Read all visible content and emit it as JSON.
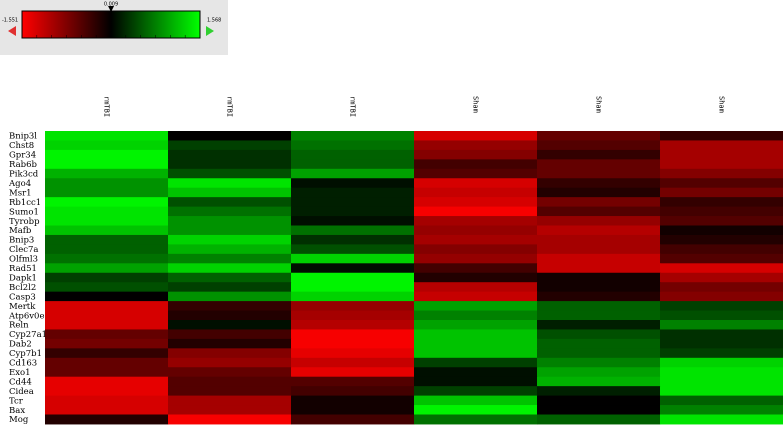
{
  "chart_data": {
    "type": "heatmap",
    "clim": [
      -1.551,
      1.568
    ],
    "center": 0.009,
    "low_color": "#ff0000",
    "mid_color": "#000000",
    "high_color": "#00ff00",
    "columns": [
      "rmTBI",
      "rmTBI",
      "rmTBI",
      "Sham",
      "Sham",
      "Sham"
    ],
    "rows": [
      "Bnip3l",
      "Chst8",
      "Gpr34",
      "Rab6b",
      "Pik3cd",
      "Ago4",
      "Msr1",
      "Rb1cc1",
      "Sumo1",
      "Tyrobp",
      "Mafb",
      "Bnip3",
      "Clec7a",
      "Olfml3",
      "Rad51",
      "Dapk1",
      "Bcl2l2",
      "Casp3",
      "Mertk",
      "Atp6v0e",
      "Reln",
      "Cyp27a1",
      "Dab2",
      "Cyp7b1",
      "Cd163",
      "Exo1",
      "Cd44",
      "Cidea",
      "Tcr",
      "Bax",
      "Mog"
    ],
    "values": [
      [
        1.4,
        0.0,
        0.8,
        -1.3,
        -0.6,
        -0.3
      ],
      [
        1.3,
        0.4,
        0.7,
        -0.9,
        -0.5,
        -1.0
      ],
      [
        1.5,
        0.3,
        0.6,
        -0.8,
        -0.3,
        -1.0
      ],
      [
        1.5,
        0.3,
        0.6,
        -0.4,
        -0.6,
        -1.0
      ],
      [
        1.1,
        0.5,
        1.0,
        -0.5,
        -0.6,
        -0.8
      ],
      [
        0.9,
        1.4,
        0.1,
        -1.3,
        -0.3,
        -0.5
      ],
      [
        0.9,
        1.2,
        0.2,
        -1.2,
        -0.2,
        -0.7
      ],
      [
        1.5,
        0.5,
        0.2,
        -1.3,
        -0.7,
        -0.3
      ],
      [
        1.4,
        0.7,
        0.2,
        -1.5,
        -0.5,
        -0.4
      ],
      [
        1.4,
        0.9,
        0.1,
        -1.0,
        -0.9,
        -0.5
      ],
      [
        1.2,
        0.9,
        0.7,
        -0.9,
        -1.1,
        -0.1
      ],
      [
        0.6,
        1.3,
        0.3,
        -1.0,
        -1.0,
        -0.2
      ],
      [
        0.6,
        1.1,
        0.5,
        -0.8,
        -1.0,
        -0.4
      ],
      [
        0.7,
        0.8,
        1.3,
        -0.9,
        -1.2,
        -0.5
      ],
      [
        1.0,
        1.3,
        0.1,
        -0.4,
        -1.2,
        -1.3
      ],
      [
        0.4,
        0.6,
        1.5,
        -0.2,
        -0.1,
        -1.0
      ],
      [
        0.5,
        0.4,
        1.5,
        -1.1,
        -0.1,
        -0.7
      ],
      [
        0.0,
        0.9,
        1.3,
        -1.2,
        -0.2,
        -0.8
      ],
      [
        -1.3,
        -0.3,
        -0.9,
        1.0,
        0.6,
        0.4
      ],
      [
        -1.3,
        -0.2,
        -1.0,
        0.8,
        0.6,
        0.5
      ],
      [
        -1.3,
        0.1,
        -1.1,
        1.0,
        0.2,
        0.8
      ],
      [
        -0.6,
        -0.4,
        -1.5,
        1.2,
        0.5,
        0.3
      ],
      [
        -0.7,
        -0.2,
        -1.5,
        1.2,
        0.6,
        0.3
      ],
      [
        -0.3,
        -0.8,
        -1.4,
        1.2,
        0.6,
        0.4
      ],
      [
        -0.6,
        -0.9,
        -1.2,
        0.4,
        0.8,
        1.3
      ],
      [
        -0.6,
        -0.6,
        -1.4,
        0.1,
        1.0,
        1.4
      ],
      [
        -1.4,
        -0.5,
        -0.5,
        0.1,
        1.1,
        1.4
      ],
      [
        -1.4,
        -0.5,
        -0.4,
        0.4,
        0.2,
        1.4
      ],
      [
        -1.3,
        -1.0,
        -0.1,
        1.2,
        0.0,
        0.6
      ],
      [
        -1.3,
        -1.0,
        -0.1,
        1.5,
        0.0,
        0.8
      ],
      [
        -0.2,
        -1.5,
        -0.4,
        0.7,
        0.6,
        1.4
      ]
    ]
  }
}
